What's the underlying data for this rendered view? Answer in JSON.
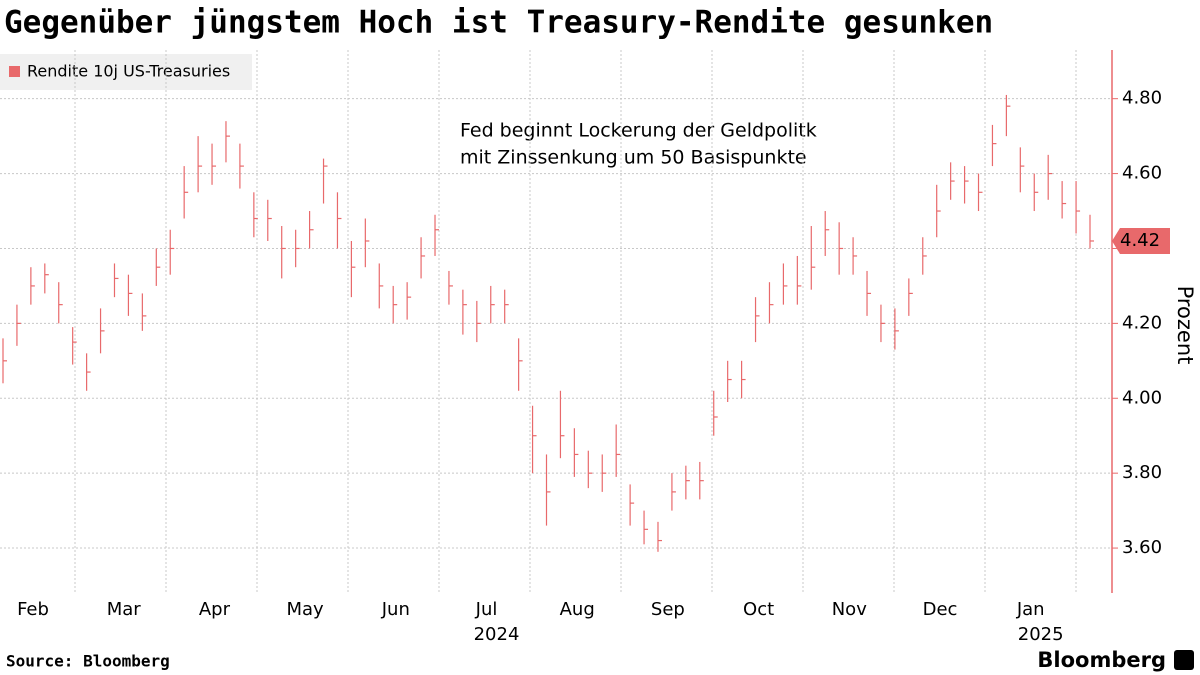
{
  "chart_data": {
    "type": "hlc",
    "title": "Gegenüber jüngstem Hoch ist Treasury-Rendite gesunken",
    "annotation": [
      "Fed beginnt Lockerung der Geldpolitk",
      "mit Zinssenkung um 50 Basispunkte"
    ],
    "y_axis_label": "Prozent",
    "source": "Source: Bloomberg",
    "brand": "Bloomberg",
    "categories": [
      "Feb",
      "Mar",
      "Apr",
      "May",
      "Jun",
      "Jul",
      "Aug",
      "Sep",
      "Oct",
      "Nov",
      "Dec",
      "Jan"
    ],
    "category_years": [
      null,
      null,
      null,
      null,
      null,
      "2024",
      null,
      null,
      null,
      null,
      null,
      "2025"
    ],
    "ylim": [
      3.48,
      4.93
    ],
    "yticks": [
      {
        "value": 3.6,
        "label": "3.60"
      },
      {
        "value": 3.8,
        "label": "3.80"
      },
      {
        "value": 4.0,
        "label": "4.00"
      },
      {
        "value": 4.2,
        "label": "4.20"
      },
      {
        "value": 4.4,
        "label": "4.40"
      },
      {
        "value": 4.6,
        "label": "4.60"
      },
      {
        "value": 4.8,
        "label": "4.80"
      }
    ],
    "grid": true,
    "legend_position": "top-left",
    "series": [
      {
        "name": "Rendite 10j US-Treasuries",
        "color": "#e8696b",
        "high": [
          4.16,
          4.25,
          4.35,
          4.36,
          4.31,
          4.19,
          4.12,
          4.24,
          4.36,
          4.33,
          4.28,
          4.4,
          4.45,
          4.62,
          4.7,
          4.68,
          4.74,
          4.68,
          4.55,
          4.53,
          4.46,
          4.45,
          4.5,
          4.64,
          4.55,
          4.42,
          4.48,
          4.36,
          4.3,
          4.31,
          4.43,
          4.49,
          4.34,
          4.29,
          4.26,
          4.3,
          4.29,
          4.16,
          3.98,
          3.85,
          4.02,
          3.92,
          3.86,
          3.85,
          3.93,
          3.77,
          3.7,
          3.67,
          3.8,
          3.82,
          3.83,
          4.02,
          4.1,
          4.1,
          4.27,
          4.31,
          4.36,
          4.38,
          4.46,
          4.5,
          4.47,
          4.43,
          4.34,
          4.25,
          4.24,
          4.32,
          4.43,
          4.57,
          4.63,
          4.62,
          4.6,
          4.73,
          4.81,
          4.67,
          4.6,
          4.65,
          4.58,
          4.58,
          4.49
        ],
        "low": [
          4.04,
          4.14,
          4.25,
          4.28,
          4.2,
          4.09,
          4.02,
          4.12,
          4.27,
          4.22,
          4.18,
          4.3,
          4.33,
          4.48,
          4.55,
          4.57,
          4.63,
          4.56,
          4.43,
          4.42,
          4.32,
          4.35,
          4.4,
          4.52,
          4.4,
          4.27,
          4.35,
          4.24,
          4.2,
          4.21,
          4.32,
          4.38,
          4.25,
          4.17,
          4.15,
          4.2,
          4.2,
          4.02,
          3.8,
          3.66,
          3.84,
          3.79,
          3.76,
          3.75,
          3.79,
          3.66,
          3.61,
          3.59,
          3.7,
          3.73,
          3.73,
          3.9,
          3.99,
          4.0,
          4.15,
          4.2,
          4.25,
          4.25,
          4.29,
          4.38,
          4.33,
          4.33,
          4.22,
          4.15,
          4.13,
          4.22,
          4.33,
          4.43,
          4.53,
          4.52,
          4.5,
          4.62,
          4.7,
          4.55,
          4.5,
          4.53,
          4.48,
          4.44,
          4.4
        ],
        "close": [
          4.1,
          4.2,
          4.3,
          4.33,
          4.25,
          4.15,
          4.07,
          4.18,
          4.32,
          4.28,
          4.22,
          4.35,
          4.4,
          4.55,
          4.62,
          4.62,
          4.7,
          4.62,
          4.48,
          4.48,
          4.4,
          4.4,
          4.45,
          4.62,
          4.48,
          4.35,
          4.42,
          4.3,
          4.25,
          4.27,
          4.38,
          4.45,
          4.3,
          4.25,
          4.2,
          4.25,
          4.25,
          4.1,
          3.9,
          3.75,
          3.9,
          3.85,
          3.8,
          3.8,
          3.85,
          3.72,
          3.65,
          3.62,
          3.75,
          3.78,
          3.78,
          3.95,
          4.05,
          4.05,
          4.22,
          4.25,
          4.3,
          4.3,
          4.35,
          4.45,
          4.4,
          4.38,
          4.28,
          4.2,
          4.18,
          4.28,
          4.38,
          4.5,
          4.58,
          4.58,
          4.55,
          4.68,
          4.78,
          4.62,
          4.55,
          4.6,
          4.52,
          4.5,
          4.42
        ]
      }
    ]
  }
}
